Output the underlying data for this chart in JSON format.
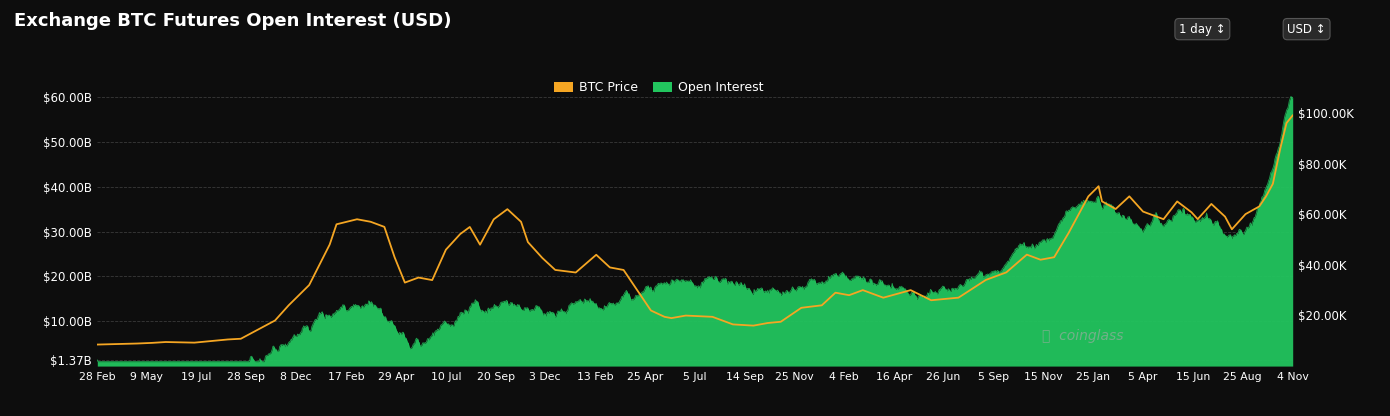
{
  "title": "Exchange BTC Futures Open Interest (USD)",
  "background_color": "#0d0d0d",
  "plot_bg_color": "#0d0d0d",
  "btc_color": "#f5a623",
  "oi_color": "#22c55e",
  "left_yticks": [
    "$1.37B",
    "$10.00B",
    "$20.00B",
    "$30.00B",
    "$40.00B",
    "$50.00B",
    "$60.00B"
  ],
  "left_ytick_vals": [
    1.37,
    10,
    20,
    30,
    40,
    50,
    60
  ],
  "left_ylim": [
    0,
    65
  ],
  "right_yticks": [
    "$20.00K",
    "$40.00K",
    "$60.00K",
    "$80.00K",
    "$100.00K"
  ],
  "right_ytick_vals": [
    20000,
    40000,
    60000,
    80000,
    100000
  ],
  "right_ylim": [
    0,
    115000
  ],
  "xtick_labels": [
    "28 Feb",
    "9 May",
    "19 Jul",
    "28 Sep",
    "8 Dec",
    "17 Feb",
    "29 Apr",
    "10 Jul",
    "20 Sep",
    "3 Dec",
    "13 Feb",
    "25 Apr",
    "5 Jul",
    "14 Sep",
    "25 Nov",
    "4 Feb",
    "16 Apr",
    "26 Jun",
    "5 Sep",
    "15 Nov",
    "25 Jan",
    "5 Apr",
    "15 Jun",
    "25 Aug",
    "4 Nov"
  ],
  "legend_btc": "BTC Price",
  "legend_oi": "Open Interest",
  "watermark": "coinglass",
  "button1": "1 day ↕",
  "button2": "USD ↕"
}
